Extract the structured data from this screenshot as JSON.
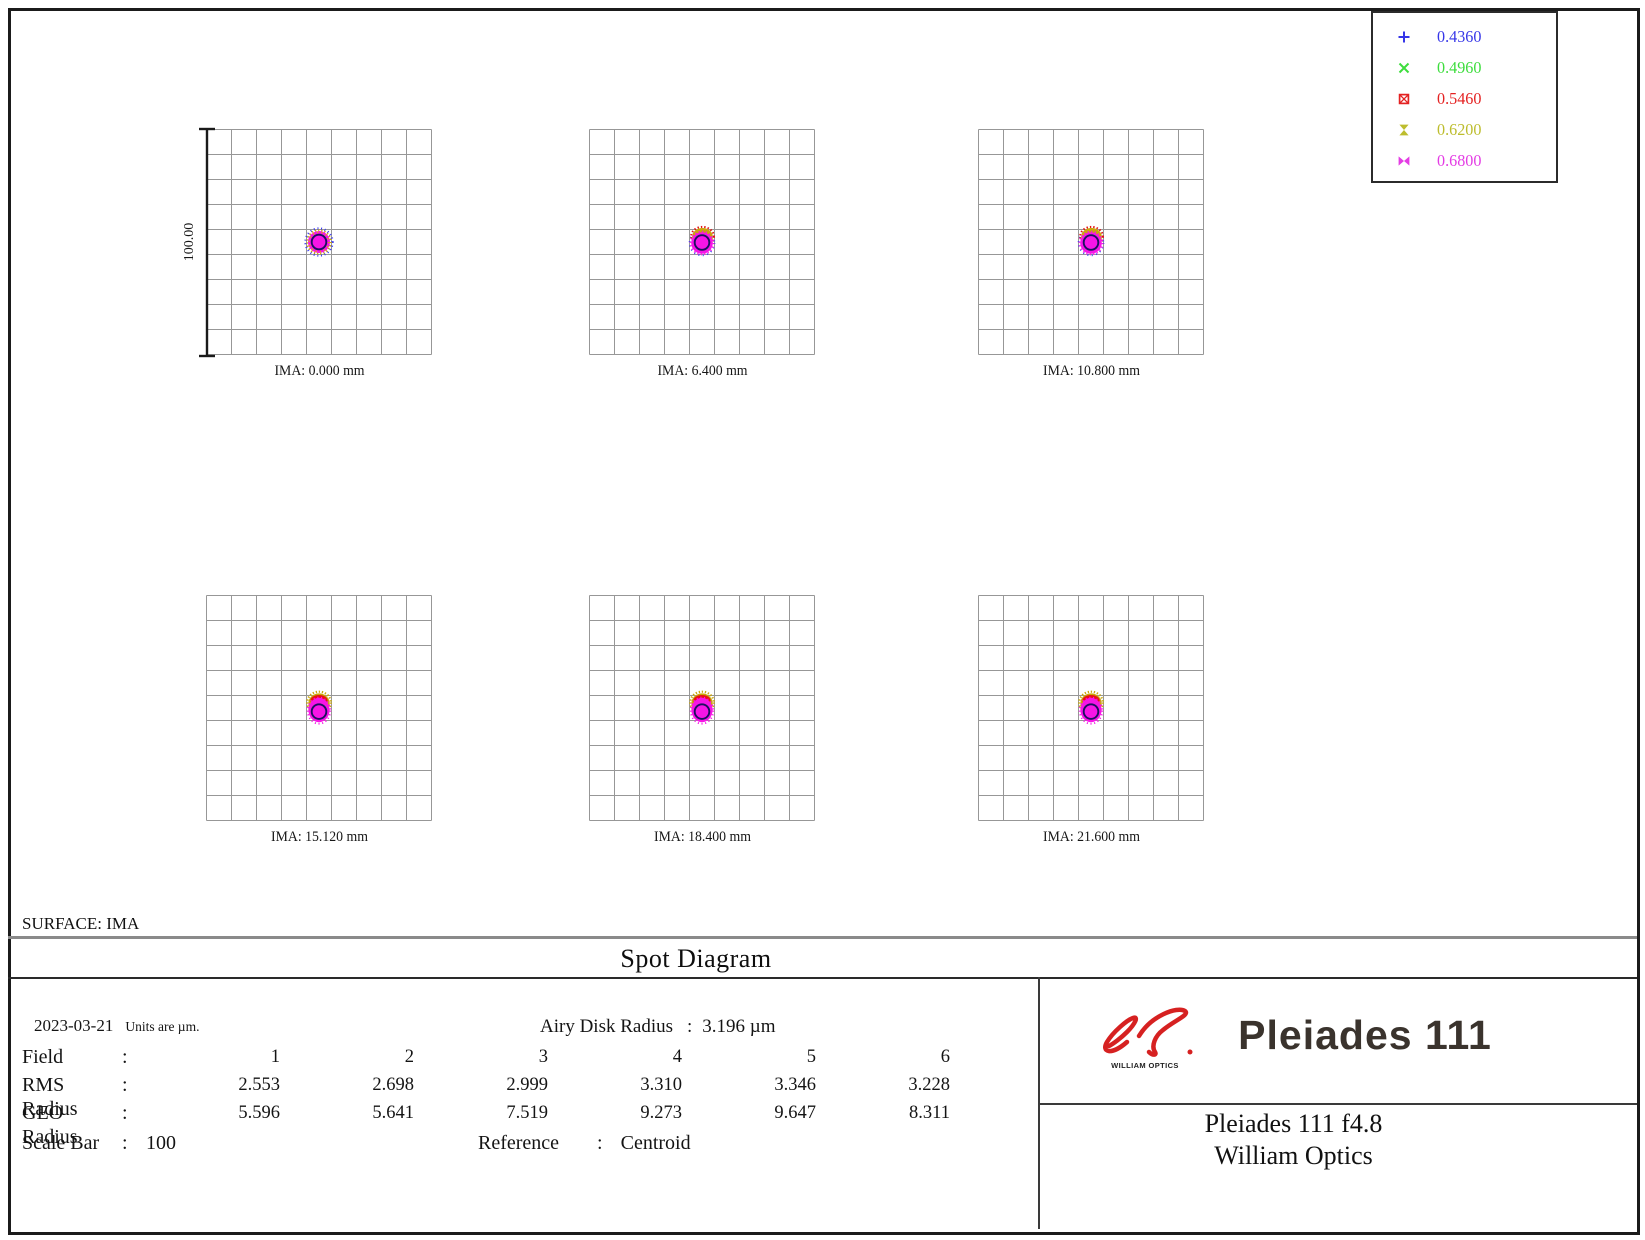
{
  "title": "Spot Diagram",
  "surface_label": "SURFACE: IMA",
  "scale_bar_label": "100.00",
  "punct": {
    "colon": ":"
  },
  "legend": {
    "entries": [
      {
        "wavelength": "0.4360",
        "color": "#3636e8",
        "marker": "plus"
      },
      {
        "wavelength": "0.4960",
        "color": "#3ddd3d",
        "marker": "cross"
      },
      {
        "wavelength": "0.5460",
        "color": "#e42222",
        "marker": "boxx"
      },
      {
        "wavelength": "0.6200",
        "color": "#bdbd2e",
        "marker": "hourglass"
      },
      {
        "wavelength": "0.6800",
        "color": "#e43ce4",
        "marker": "bowtie"
      }
    ]
  },
  "panels": [
    {
      "label": "IMA: 0.000 mm",
      "spot": "symmetric"
    },
    {
      "label": "IMA: 6.400 mm",
      "spot": "cap"
    },
    {
      "label": "IMA: 10.800 mm",
      "spot": "cap"
    },
    {
      "label": "IMA: 15.120 mm",
      "spot": "coma"
    },
    {
      "label": "IMA: 18.400 mm",
      "spot": "coma"
    },
    {
      "label": "IMA: 21.600 mm",
      "spot": "coma"
    }
  ],
  "info": {
    "date": "2023-03-21",
    "units": "Units are µm.",
    "airy_label": "Airy Disk Radius",
    "airy_value": "3.196 µm",
    "rows": [
      {
        "label": "Field",
        "values": [
          "1",
          "2",
          "3",
          "4",
          "5",
          "6"
        ]
      },
      {
        "label": "RMS Radius",
        "values": [
          "2.553",
          "2.698",
          "2.999",
          "3.310",
          "3.346",
          "3.228"
        ]
      },
      {
        "label": "GEO Radius",
        "values": [
          "5.596",
          "5.641",
          "7.519",
          "9.273",
          "9.647",
          "8.311"
        ]
      }
    ],
    "scale_bar_row": {
      "label": "Scale Bar",
      "value": "100"
    },
    "reference_row": {
      "label": "Reference",
      "value": "Centroid"
    }
  },
  "branding": {
    "logo_text": "WILLIAM OPTICS",
    "product": "Pleiades 111",
    "model_line1": "Pleiades 111 f4.8",
    "model_line2": "William Optics"
  },
  "chart_data": {
    "type": "scatter",
    "title": "Spot Diagram",
    "surface": "IMA",
    "date": "2023-03-21",
    "units": "µm",
    "airy_disk_radius_um": 3.196,
    "scale_bar_um": 100,
    "reference": "Centroid",
    "wavelengths_um": [
      0.436,
      0.496,
      0.546,
      0.62,
      0.68
    ],
    "grid": {
      "cells": 9,
      "scale_per_grid_um": 100
    },
    "fields": [
      {
        "field": 1,
        "ima_mm": 0.0,
        "rms_radius_um": 2.553,
        "geo_radius_um": 5.596
      },
      {
        "field": 2,
        "ima_mm": 6.4,
        "rms_radius_um": 2.698,
        "geo_radius_um": 5.641
      },
      {
        "field": 3,
        "ima_mm": 10.8,
        "rms_radius_um": 2.999,
        "geo_radius_um": 7.519
      },
      {
        "field": 4,
        "ima_mm": 15.12,
        "rms_radius_um": 3.31,
        "geo_radius_um": 9.273
      },
      {
        "field": 5,
        "ima_mm": 18.4,
        "rms_radius_um": 3.346,
        "geo_radius_um": 9.647
      },
      {
        "field": 6,
        "ima_mm": 21.6,
        "rms_radius_um": 3.228,
        "geo_radius_um": 8.311
      }
    ]
  }
}
